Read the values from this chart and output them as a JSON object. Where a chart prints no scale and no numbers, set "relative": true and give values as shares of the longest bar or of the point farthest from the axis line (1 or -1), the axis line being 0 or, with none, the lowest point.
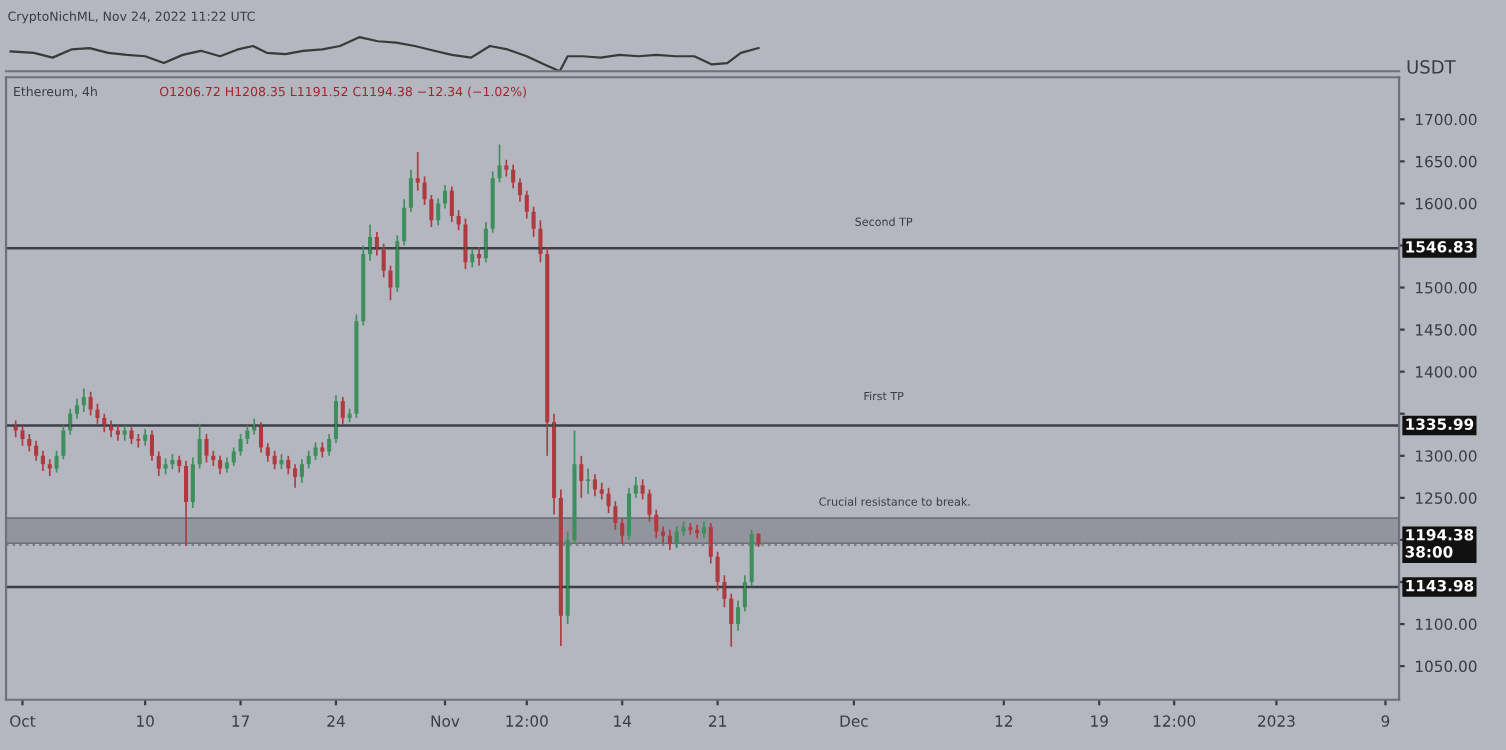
{
  "chart_data": [
    {
      "type": "line",
      "title": "CryptoNichML, Nov 24, 2022 11:22 UTC",
      "relative": true,
      "tick_labels": false,
      "grid": false,
      "xlim": [
        "2022-09-29T19:00",
        "2023-01-10T00:00"
      ],
      "x": [
        "2022-09-30T03:00",
        "2022-10-01T20:00",
        "2022-10-03T05:00",
        "2022-10-04T14:00",
        "2022-10-05T22:00",
        "2022-10-07T07:00",
        "2022-10-08T16:00",
        "2022-10-10T00:00",
        "2022-10-11T09:00",
        "2022-10-12T18:00",
        "2022-10-14T02:00",
        "2022-10-15T12:00",
        "2022-10-16T19:00",
        "2022-10-17T22:00",
        "2022-10-18T22:00",
        "2022-10-20T07:00",
        "2022-10-21T14:00",
        "2022-10-23T00:00",
        "2022-10-24T07:00",
        "2022-10-25T17:00",
        "2022-10-27T02:00",
        "2022-10-28T10:00",
        "2022-10-29T19:00",
        "2022-10-31T05:00",
        "2022-11-01T12:00",
        "2022-11-02T22:00",
        "2022-11-04T07:00",
        "2022-11-05T14:00",
        "2022-11-07T00:00",
        "2022-11-08T07:00",
        "2022-11-09T10:00",
        "2022-11-10T00:00",
        "2022-11-11T02:00",
        "2022-11-12T10:00",
        "2022-11-13T19:00",
        "2022-11-15T05:00",
        "2022-11-16T12:00",
        "2022-11-17T22:00",
        "2022-11-19T07:00",
        "2022-11-20T14:00",
        "2022-11-21T17:00",
        "2022-11-22T17:00",
        "2022-11-24T00:00"
      ],
      "series": [
        {
          "color": "#3a3a3a",
          "values": [
            0.58,
            0.54,
            0.4,
            0.64,
            0.68,
            0.54,
            0.48,
            0.44,
            0.24,
            0.48,
            0.6,
            0.44,
            0.64,
            0.74,
            0.54,
            0.5,
            0.6,
            0.64,
            0.74,
            1.0,
            0.88,
            0.84,
            0.74,
            0.6,
            0.48,
            0.4,
            0.74,
            0.64,
            0.44,
            0.2,
            0,
            0.44,
            0.44,
            0.4,
            0.48,
            0.44,
            0.48,
            0.44,
            0.44,
            0.2,
            0.24,
            0.54,
            0.68
          ]
        }
      ]
    },
    {
      "type": "candlestick",
      "title": "Ethereum, 4h",
      "ylabel": "USDT",
      "grid": false,
      "xlim": [
        "2022-09-29T19:00",
        "2023-01-10T00:00"
      ],
      "ylim": [
        1010,
        1750
      ],
      "xticks": [
        {
          "value": "2022-10-01",
          "label": "Oct"
        },
        {
          "value": "2022-10-10",
          "label": "10"
        },
        {
          "value": "2022-10-17",
          "label": "17"
        },
        {
          "value": "2022-10-24",
          "label": "24"
        },
        {
          "value": "2022-11-01",
          "label": "Nov"
        },
        {
          "value": "2022-11-07",
          "label": "12:00"
        },
        {
          "value": "2022-11-14",
          "label": "14"
        },
        {
          "value": "2022-11-21",
          "label": "21"
        },
        {
          "value": "2022-12-01",
          "label": "Dec"
        },
        {
          "value": "2022-12-12",
          "label": "12"
        },
        {
          "value": "2022-12-19",
          "label": "19"
        },
        {
          "value": "2022-12-24T12:00",
          "label": "12:00"
        },
        {
          "value": "2023-01-01",
          "label": "2023"
        },
        {
          "value": "2023-01-09",
          "label": "9"
        }
      ],
      "yticks": [
        {
          "value": 1050,
          "label": "1050.00"
        },
        {
          "value": 1100,
          "label": "1100.00"
        },
        {
          "value": 1150,
          "label": null
        },
        {
          "value": 1200,
          "label": null
        },
        {
          "value": 1250,
          "label": "1250.00"
        },
        {
          "value": 1300,
          "label": "1300.00"
        },
        {
          "value": 1350,
          "label": null
        },
        {
          "value": 1400,
          "label": "1400.00"
        },
        {
          "value": 1450,
          "label": "1450.00"
        },
        {
          "value": 1500,
          "label": "1500.00"
        },
        {
          "value": 1550,
          "label": null
        },
        {
          "value": 1600,
          "label": "1600.00"
        },
        {
          "value": 1650,
          "label": "1650.00"
        },
        {
          "value": 1700,
          "label": "1700.00"
        }
      ],
      "x": [
        "2022-09-30T12:00",
        "2022-10-01T00:00",
        "2022-10-01T12:00",
        "2022-10-02T00:00",
        "2022-10-02T12:00",
        "2022-10-03T00:00",
        "2022-10-03T12:00",
        "2022-10-04T00:00",
        "2022-10-04T12:00",
        "2022-10-05T00:00",
        "2022-10-05T12:00",
        "2022-10-06T00:00",
        "2022-10-06T12:00",
        "2022-10-07T00:00",
        "2022-10-07T12:00",
        "2022-10-08T00:00",
        "2022-10-08T12:00",
        "2022-10-09T00:00",
        "2022-10-09T12:00",
        "2022-10-10T00:00",
        "2022-10-10T12:00",
        "2022-10-11T00:00",
        "2022-10-11T12:00",
        "2022-10-12T00:00",
        "2022-10-12T12:00",
        "2022-10-13T00:00",
        "2022-10-13T12:00",
        "2022-10-14T00:00",
        "2022-10-14T12:00",
        "2022-10-15T00:00",
        "2022-10-15T12:00",
        "2022-10-16T00:00",
        "2022-10-16T12:00",
        "2022-10-17T00:00",
        "2022-10-17T12:00",
        "2022-10-18T00:00",
        "2022-10-18T12:00",
        "2022-10-19T00:00",
        "2022-10-19T12:00",
        "2022-10-20T00:00",
        "2022-10-20T12:00",
        "2022-10-21T00:00",
        "2022-10-21T12:00",
        "2022-10-22T00:00",
        "2022-10-22T12:00",
        "2022-10-23T00:00",
        "2022-10-23T12:00",
        "2022-10-24T00:00",
        "2022-10-24T12:00",
        "2022-10-25T00:00",
        "2022-10-25T12:00",
        "2022-10-26T00:00",
        "2022-10-26T12:00",
        "2022-10-27T00:00",
        "2022-10-27T12:00",
        "2022-10-28T00:00",
        "2022-10-28T12:00",
        "2022-10-29T00:00",
        "2022-10-29T12:00",
        "2022-10-30T00:00",
        "2022-10-30T12:00",
        "2022-10-31T00:00",
        "2022-10-31T12:00",
        "2022-11-01T00:00",
        "2022-11-01T12:00",
        "2022-11-02T00:00",
        "2022-11-02T12:00",
        "2022-11-03T00:00",
        "2022-11-03T12:00",
        "2022-11-04T00:00",
        "2022-11-04T12:00",
        "2022-11-05T00:00",
        "2022-11-05T12:00",
        "2022-11-06T00:00",
        "2022-11-06T12:00",
        "2022-11-07T00:00",
        "2022-11-07T12:00",
        "2022-11-08T00:00",
        "2022-11-08T12:00",
        "2022-11-09T00:00",
        "2022-11-09T12:00",
        "2022-11-10T00:00",
        "2022-11-10T12:00",
        "2022-11-11T00:00",
        "2022-11-11T12:00",
        "2022-11-12T00:00",
        "2022-11-12T12:00",
        "2022-11-13T00:00",
        "2022-11-13T12:00",
        "2022-11-14T00:00",
        "2022-11-14T12:00",
        "2022-11-15T00:00",
        "2022-11-15T12:00",
        "2022-11-16T00:00",
        "2022-11-16T12:00",
        "2022-11-17T00:00",
        "2022-11-17T12:00",
        "2022-11-18T00:00",
        "2022-11-18T12:00",
        "2022-11-19T00:00",
        "2022-11-19T12:00",
        "2022-11-20T00:00",
        "2022-11-20T12:00",
        "2022-11-21T00:00",
        "2022-11-21T12:00",
        "2022-11-22T00:00",
        "2022-11-22T12:00",
        "2022-11-23T00:00",
        "2022-11-23T12:00",
        "2022-11-24T00:00"
      ],
      "ohlc": [
        [
          1335,
          1342,
          1322,
          1330
        ],
        [
          1330,
          1336,
          1312,
          1320
        ],
        [
          1320,
          1326,
          1305,
          1312
        ],
        [
          1312,
          1318,
          1294,
          1300
        ],
        [
          1300,
          1306,
          1282,
          1290
        ],
        [
          1290,
          1296,
          1276,
          1285
        ],
        [
          1285,
          1306,
          1280,
          1300
        ],
        [
          1300,
          1336,
          1296,
          1330
        ],
        [
          1330,
          1356,
          1325,
          1350
        ],
        [
          1350,
          1368,
          1344,
          1360
        ],
        [
          1360,
          1380,
          1352,
          1370
        ],
        [
          1370,
          1376,
          1348,
          1355
        ],
        [
          1355,
          1362,
          1338,
          1345
        ],
        [
          1345,
          1350,
          1328,
          1335
        ],
        [
          1335,
          1342,
          1322,
          1330
        ],
        [
          1330,
          1336,
          1318,
          1325
        ],
        [
          1325,
          1336,
          1318,
          1330
        ],
        [
          1330,
          1334,
          1314,
          1320
        ],
        [
          1320,
          1326,
          1310,
          1318
        ],
        [
          1318,
          1332,
          1312,
          1325
        ],
        [
          1325,
          1330,
          1294,
          1300
        ],
        [
          1300,
          1305,
          1276,
          1285
        ],
        [
          1285,
          1297,
          1278,
          1290
        ],
        [
          1290,
          1302,
          1284,
          1295
        ],
        [
          1295,
          1300,
          1280,
          1288
        ],
        [
          1288,
          1294,
          1193,
          1245
        ],
        [
          1245,
          1298,
          1238,
          1290
        ],
        [
          1290,
          1338,
          1285,
          1320
        ],
        [
          1320,
          1326,
          1292,
          1300
        ],
        [
          1300,
          1306,
          1288,
          1295
        ],
        [
          1295,
          1300,
          1278,
          1285
        ],
        [
          1285,
          1298,
          1280,
          1292
        ],
        [
          1292,
          1310,
          1288,
          1305
        ],
        [
          1305,
          1326,
          1300,
          1320
        ],
        [
          1320,
          1336,
          1314,
          1330
        ],
        [
          1330,
          1344,
          1325,
          1336
        ],
        [
          1336,
          1340,
          1304,
          1310
        ],
        [
          1310,
          1315,
          1293,
          1300
        ],
        [
          1300,
          1306,
          1284,
          1290
        ],
        [
          1290,
          1302,
          1284,
          1295
        ],
        [
          1295,
          1300,
          1278,
          1285
        ],
        [
          1285,
          1290,
          1262,
          1275
        ],
        [
          1275,
          1296,
          1268,
          1290
        ],
        [
          1290,
          1306,
          1285,
          1300
        ],
        [
          1300,
          1316,
          1295,
          1310
        ],
        [
          1310,
          1316,
          1298,
          1305
        ],
        [
          1305,
          1326,
          1300,
          1320
        ],
        [
          1320,
          1372,
          1315,
          1365
        ],
        [
          1365,
          1370,
          1338,
          1345
        ],
        [
          1345,
          1356,
          1340,
          1350
        ],
        [
          1350,
          1468,
          1345,
          1460
        ],
        [
          1460,
          1550,
          1455,
          1540
        ],
        [
          1540,
          1575,
          1532,
          1560
        ],
        [
          1560,
          1566,
          1538,
          1545
        ],
        [
          1545,
          1552,
          1512,
          1520
        ],
        [
          1520,
          1526,
          1485,
          1500
        ],
        [
          1500,
          1562,
          1495,
          1555
        ],
        [
          1555,
          1605,
          1550,
          1595
        ],
        [
          1595,
          1640,
          1590,
          1630
        ],
        [
          1630,
          1661,
          1615,
          1625
        ],
        [
          1625,
          1632,
          1598,
          1605
        ],
        [
          1605,
          1610,
          1572,
          1580
        ],
        [
          1580,
          1606,
          1574,
          1600
        ],
        [
          1600,
          1622,
          1594,
          1615
        ],
        [
          1615,
          1620,
          1578,
          1585
        ],
        [
          1585,
          1592,
          1568,
          1575
        ],
        [
          1575,
          1582,
          1522,
          1530
        ],
        [
          1530,
          1546,
          1524,
          1540
        ],
        [
          1540,
          1548,
          1526,
          1535
        ],
        [
          1535,
          1578,
          1530,
          1570
        ],
        [
          1570,
          1638,
          1565,
          1630
        ],
        [
          1630,
          1670,
          1625,
          1645
        ],
        [
          1645,
          1652,
          1632,
          1640
        ],
        [
          1640,
          1646,
          1618,
          1625
        ],
        [
          1625,
          1630,
          1602,
          1610
        ],
        [
          1610,
          1615,
          1582,
          1590
        ],
        [
          1590,
          1596,
          1560,
          1570
        ],
        [
          1570,
          1580,
          1530,
          1540
        ],
        [
          1540,
          1548,
          1300,
          1340
        ],
        [
          1340,
          1350,
          1230,
          1250
        ],
        [
          1250,
          1260,
          1074,
          1110
        ],
        [
          1110,
          1210,
          1100,
          1200
        ],
        [
          1200,
          1330,
          1195,
          1290
        ],
        [
          1290,
          1300,
          1250,
          1270
        ],
        [
          1270,
          1285,
          1255,
          1272
        ],
        [
          1272,
          1278,
          1252,
          1260
        ],
        [
          1260,
          1268,
          1248,
          1255
        ],
        [
          1255,
          1262,
          1232,
          1240
        ],
        [
          1240,
          1246,
          1212,
          1220
        ],
        [
          1220,
          1226,
          1195,
          1205
        ],
        [
          1205,
          1262,
          1200,
          1255
        ],
        [
          1255,
          1275,
          1250,
          1265
        ],
        [
          1265,
          1272,
          1248,
          1255
        ],
        [
          1255,
          1260,
          1222,
          1230
        ],
        [
          1230,
          1236,
          1202,
          1210
        ],
        [
          1210,
          1216,
          1196,
          1205
        ],
        [
          1205,
          1212,
          1188,
          1195
        ],
        [
          1195,
          1216,
          1190,
          1210
        ],
        [
          1210,
          1222,
          1205,
          1215
        ],
        [
          1215,
          1220,
          1206,
          1212
        ],
        [
          1212,
          1218,
          1202,
          1208
        ],
        [
          1208,
          1222,
          1202,
          1215
        ],
        [
          1215,
          1220,
          1172,
          1180
        ],
        [
          1180,
          1186,
          1140,
          1150
        ],
        [
          1150,
          1158,
          1120,
          1130
        ],
        [
          1130,
          1136,
          1073,
          1100
        ],
        [
          1100,
          1128,
          1092,
          1120
        ],
        [
          1120,
          1158,
          1115,
          1150
        ],
        [
          1150,
          1212,
          1145,
          1206.72
        ],
        [
          1206.72,
          1208.35,
          1191.52,
          1194.38
        ]
      ],
      "ref_lines": [
        {
          "axis": "y",
          "value": 1546.83,
          "label": "1546.83",
          "color": "#3c3f46",
          "line_style": "solid"
        },
        {
          "axis": "y",
          "value": 1335.99,
          "label": "1335.99",
          "color": "#3c3f46",
          "line_style": "solid"
        },
        {
          "axis": "y",
          "value": 1143.98,
          "label": "1143.98",
          "color": "#3c3f46",
          "line_style": "solid"
        },
        {
          "axis": "y",
          "value": 1194.38,
          "label": "1194.38\n38:00",
          "color": "#7a7d85",
          "line_style": "dotted"
        }
      ],
      "bands": [
        {
          "axis": "y",
          "from": 1196,
          "to": 1226,
          "label": "Crucial resistance to break.",
          "color": "#8a8d95"
        }
      ],
      "annotations": [
        "O1206.72 H1208.35 L1191.52 C1194.38 −12.34 (−1.02%)",
        "Second TP",
        "First TP"
      ]
    }
  ]
}
